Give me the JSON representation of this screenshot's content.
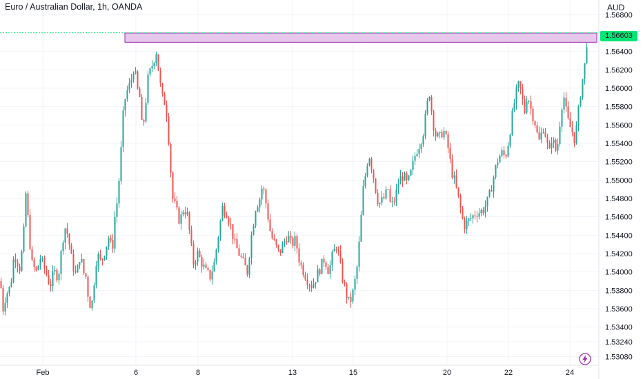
{
  "header": {
    "title": "Euro / Australian Dollar, 1h, OANDA",
    "currency": "AUD"
  },
  "last_price_label": "1.56603",
  "colors": {
    "up": "#26a69a",
    "down": "#ef5350",
    "zone_fill": "#e1bee7",
    "zone_border": "#9c27b0",
    "last_price": "#00e676",
    "grid": "#f0f3fa",
    "text": "#131722"
  },
  "chart_data": {
    "type": "candlestick",
    "instrument": "EURAUD",
    "timeframe": "1h",
    "ylim": [
      1.53,
      1.569
    ],
    "y_ticks": [
      "1.56800",
      "1.56400",
      "1.56200",
      "1.56000",
      "1.55800",
      "1.55600",
      "1.55400",
      "1.55200",
      "1.55000",
      "1.54800",
      "1.54600",
      "1.54400",
      "1.54200",
      "1.54000",
      "1.53800",
      "1.53600",
      "1.53400",
      "1.53240",
      "1.53080"
    ],
    "x_ticks": [
      "Feb",
      "6",
      "8",
      "13",
      "15",
      "20",
      "22",
      "24"
    ],
    "grid": true,
    "resistance_zone": {
      "low": 1.565,
      "high": 1.566
    },
    "last_price": 1.56603,
    "path": [
      [
        0,
        1.539
      ],
      [
        4,
        1.536
      ],
      [
        8,
        1.5375
      ],
      [
        15,
        1.5385
      ],
      [
        20,
        1.542
      ],
      [
        28,
        1.5405
      ],
      [
        33,
        1.543
      ],
      [
        37,
        1.5485
      ],
      [
        41,
        1.545
      ],
      [
        45,
        1.541
      ],
      [
        52,
        1.54
      ],
      [
        58,
        1.5415
      ],
      [
        66,
        1.54
      ],
      [
        72,
        1.5385
      ],
      [
        78,
        1.54
      ],
      [
        84,
        1.5395
      ],
      [
        88,
        1.542
      ],
      [
        93,
        1.545
      ],
      [
        98,
        1.544
      ],
      [
        104,
        1.541
      ],
      [
        110,
        1.5395
      ],
      [
        116,
        1.542
      ],
      [
        120,
        1.54
      ],
      [
        124,
        1.5395
      ],
      [
        128,
        1.537
      ],
      [
        132,
        1.536
      ],
      [
        136,
        1.539
      ],
      [
        140,
        1.542
      ],
      [
        146,
        1.541
      ],
      [
        152,
        1.5425
      ],
      [
        158,
        1.544
      ],
      [
        162,
        1.542
      ],
      [
        166,
        1.546
      ],
      [
        170,
        1.548
      ],
      [
        174,
        1.552
      ],
      [
        178,
        1.557
      ],
      [
        182,
        1.5595
      ],
      [
        186,
        1.56
      ],
      [
        190,
        1.561
      ],
      [
        194,
        1.5625
      ],
      [
        198,
        1.56
      ],
      [
        202,
        1.559
      ],
      [
        206,
        1.555
      ],
      [
        210,
        1.558
      ],
      [
        214,
        1.561
      ],
      [
        218,
        1.562
      ],
      [
        222,
        1.563
      ],
      [
        226,
        1.564
      ],
      [
        230,
        1.5615
      ],
      [
        234,
        1.559
      ],
      [
        238,
        1.5585
      ],
      [
        242,
        1.557
      ],
      [
        246,
        1.552
      ],
      [
        250,
        1.548
      ],
      [
        254,
        1.547
      ],
      [
        260,
        1.5455
      ],
      [
        266,
        1.547
      ],
      [
        272,
        1.546
      ],
      [
        276,
        1.543
      ],
      [
        280,
        1.541
      ],
      [
        286,
        1.542
      ],
      [
        292,
        1.541
      ],
      [
        298,
        1.54
      ],
      [
        304,
        1.5395
      ],
      [
        310,
        1.541
      ],
      [
        316,
        1.544
      ],
      [
        322,
        1.547
      ],
      [
        328,
        1.5465
      ],
      [
        334,
        1.545
      ],
      [
        340,
        1.543
      ],
      [
        346,
        1.542
      ],
      [
        352,
        1.541
      ],
      [
        358,
        1.54
      ],
      [
        364,
        1.544
      ],
      [
        370,
        1.547
      ],
      [
        376,
        1.548
      ],
      [
        380,
        1.5495
      ],
      [
        384,
        1.548
      ],
      [
        388,
        1.546
      ],
      [
        392,
        1.544
      ],
      [
        398,
        1.543
      ],
      [
        404,
        1.542
      ],
      [
        410,
        1.543
      ],
      [
        416,
        1.544
      ],
      [
        422,
        1.543
      ],
      [
        428,
        1.5435
      ],
      [
        434,
        1.541
      ],
      [
        440,
        1.54
      ],
      [
        446,
        1.539
      ],
      [
        452,
        1.5385
      ],
      [
        458,
        1.5395
      ],
      [
        464,
        1.5405
      ],
      [
        470,
        1.5415
      ],
      [
        476,
        1.54
      ],
      [
        482,
        1.542
      ],
      [
        488,
        1.543
      ],
      [
        494,
        1.54
      ],
      [
        500,
        1.538
      ],
      [
        506,
        1.5365
      ],
      [
        512,
        1.538
      ],
      [
        518,
        1.541
      ],
      [
        522,
        1.545
      ],
      [
        526,
        1.549
      ],
      [
        530,
        1.551
      ],
      [
        534,
        1.553
      ],
      [
        538,
        1.5515
      ],
      [
        542,
        1.55
      ],
      [
        546,
        1.548
      ],
      [
        550,
        1.5475
      ],
      [
        556,
        1.548
      ],
      [
        562,
        1.549
      ],
      [
        566,
        1.547
      ],
      [
        572,
        1.548
      ],
      [
        578,
        1.55
      ],
      [
        584,
        1.5505
      ],
      [
        590,
        1.5495
      ],
      [
        596,
        1.551
      ],
      [
        602,
        1.553
      ],
      [
        608,
        1.554
      ],
      [
        614,
        1.5555
      ],
      [
        618,
        1.558
      ],
      [
        622,
        1.5595
      ],
      [
        626,
        1.557
      ],
      [
        630,
        1.555
      ],
      [
        636,
        1.5545
      ],
      [
        642,
        1.5555
      ],
      [
        648,
        1.554
      ],
      [
        654,
        1.551
      ],
      [
        658,
        1.55
      ],
      [
        664,
        1.548
      ],
      [
        668,
        1.5465
      ],
      [
        672,
        1.545
      ],
      [
        678,
        1.5455
      ],
      [
        684,
        1.546
      ],
      [
        690,
        1.5465
      ],
      [
        696,
        1.5465
      ],
      [
        702,
        1.547
      ],
      [
        708,
        1.548
      ],
      [
        714,
        1.55
      ],
      [
        720,
        1.552
      ],
      [
        726,
        1.553
      ],
      [
        732,
        1.5525
      ],
      [
        736,
        1.554
      ],
      [
        740,
        1.556
      ],
      [
        744,
        1.558
      ],
      [
        748,
        1.5595
      ],
      [
        752,
        1.5605
      ],
      [
        756,
        1.559
      ],
      [
        760,
        1.5575
      ],
      [
        764,
        1.5595
      ],
      [
        768,
        1.558
      ],
      [
        772,
        1.557
      ],
      [
        776,
        1.556
      ],
      [
        780,
        1.554
      ],
      [
        784,
        1.555
      ],
      [
        788,
        1.556
      ],
      [
        792,
        1.554
      ],
      [
        796,
        1.553
      ],
      [
        800,
        1.555
      ],
      [
        804,
        1.553
      ],
      [
        808,
        1.554
      ],
      [
        812,
        1.557
      ],
      [
        816,
        1.5595
      ],
      [
        820,
        1.5575
      ],
      [
        824,
        1.556
      ],
      [
        828,
        1.5555
      ],
      [
        832,
        1.5545
      ],
      [
        836,
        1.556
      ],
      [
        840,
        1.559
      ],
      [
        844,
        1.561
      ],
      [
        848,
        1.563
      ],
      [
        851,
        1.566
      ]
    ]
  }
}
